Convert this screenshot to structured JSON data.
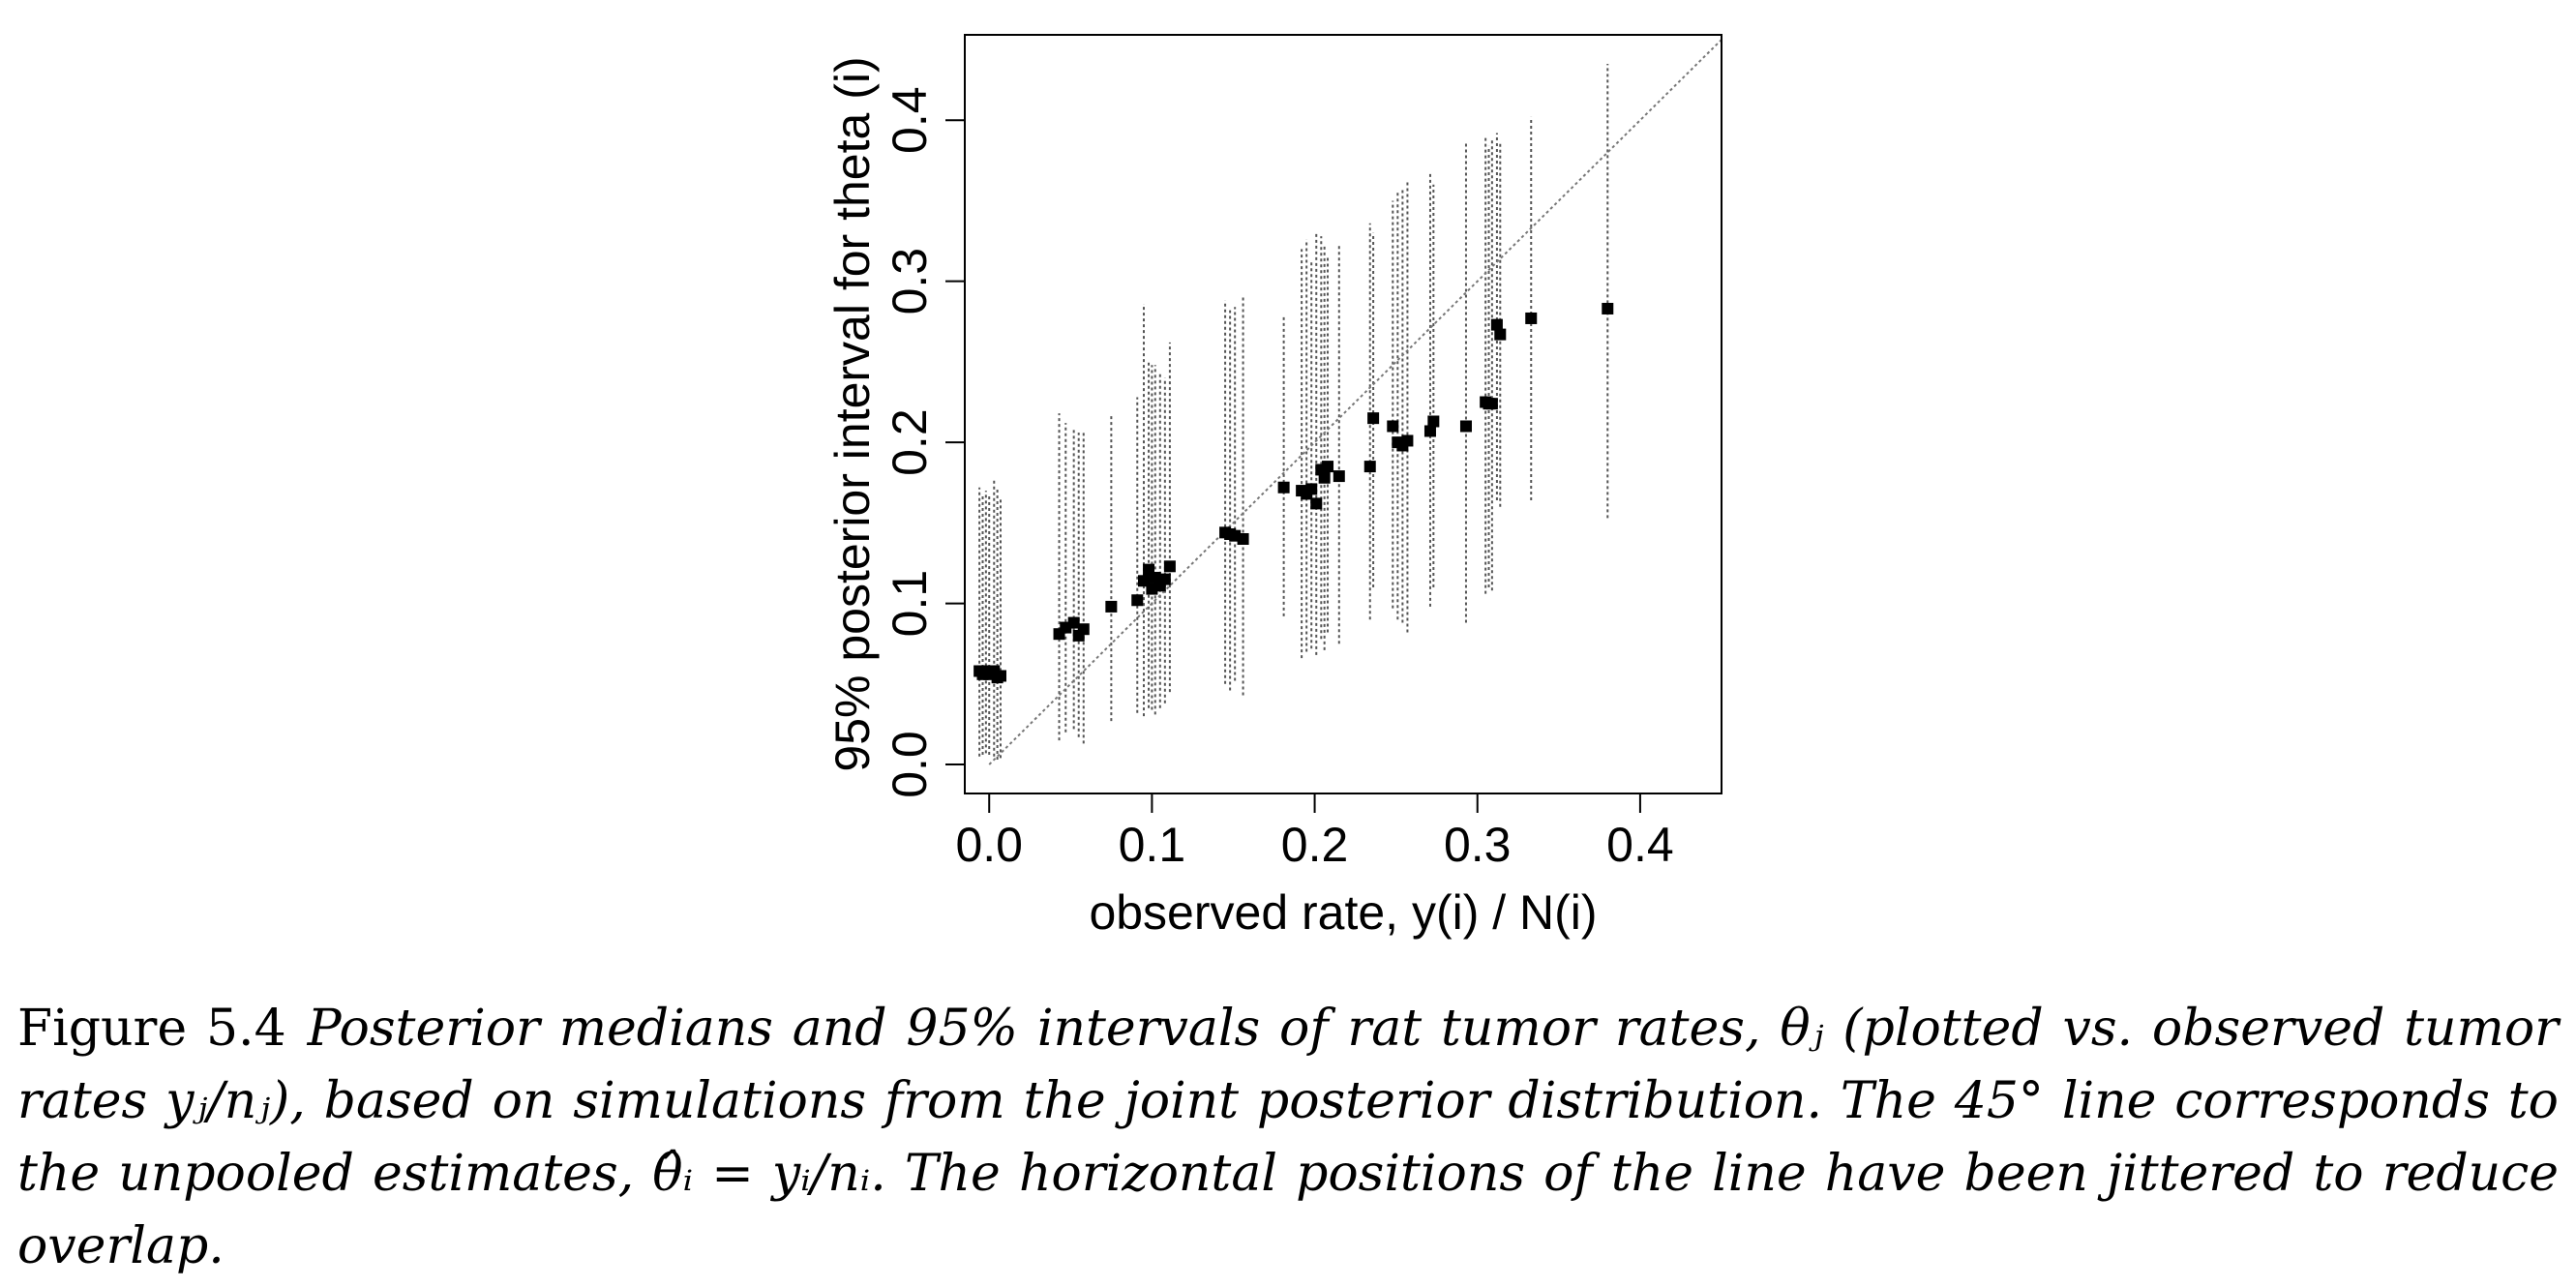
{
  "chart_data": {
    "type": "scatter",
    "xlabel": "observed rate, y(i) / N(i)",
    "ylabel": "95% posterior interval for theta (i)",
    "xlim": [
      -0.015,
      0.45
    ],
    "ylim": [
      -0.018,
      0.453
    ],
    "x_ticks": [
      "0.0",
      "0.1",
      "0.2",
      "0.3",
      "0.4"
    ],
    "y_ticks": [
      "0.0",
      "0.1",
      "0.2",
      "0.3",
      "0.4"
    ],
    "reference_line": "y = x (45° line)",
    "grid": false,
    "legend": "none",
    "points": [
      {
        "x": -0.006,
        "y": 0.058,
        "lo": 0.005,
        "hi": 0.172
      },
      {
        "x": -0.004,
        "y": 0.056,
        "lo": 0.006,
        "hi": 0.168
      },
      {
        "x": -0.002,
        "y": 0.058,
        "lo": 0.007,
        "hi": 0.17
      },
      {
        "x": 0.0,
        "y": 0.056,
        "lo": 0.006,
        "hi": 0.168
      },
      {
        "x": 0.003,
        "y": 0.058,
        "lo": 0.005,
        "hi": 0.178
      },
      {
        "x": 0.005,
        "y": 0.054,
        "lo": 0.003,
        "hi": 0.172
      },
      {
        "x": 0.007,
        "y": 0.055,
        "lo": 0.004,
        "hi": 0.166
      },
      {
        "x": 0.043,
        "y": 0.081,
        "lo": 0.015,
        "hi": 0.218
      },
      {
        "x": 0.047,
        "y": 0.085,
        "lo": 0.02,
        "hi": 0.212
      },
      {
        "x": 0.052,
        "y": 0.088,
        "lo": 0.022,
        "hi": 0.208
      },
      {
        "x": 0.055,
        "y": 0.08,
        "lo": 0.017,
        "hi": 0.206
      },
      {
        "x": 0.058,
        "y": 0.084,
        "lo": 0.013,
        "hi": 0.206
      },
      {
        "x": 0.075,
        "y": 0.098,
        "lo": 0.027,
        "hi": 0.218
      },
      {
        "x": 0.091,
        "y": 0.102,
        "lo": 0.032,
        "hi": 0.228
      },
      {
        "x": 0.095,
        "y": 0.114,
        "lo": 0.03,
        "hi": 0.286
      },
      {
        "x": 0.098,
        "y": 0.121,
        "lo": 0.035,
        "hi": 0.25
      },
      {
        "x": 0.1,
        "y": 0.109,
        "lo": 0.034,
        "hi": 0.248
      },
      {
        "x": 0.102,
        "y": 0.116,
        "lo": 0.031,
        "hi": 0.248
      },
      {
        "x": 0.105,
        "y": 0.111,
        "lo": 0.035,
        "hi": 0.244
      },
      {
        "x": 0.108,
        "y": 0.115,
        "lo": 0.038,
        "hi": 0.24
      },
      {
        "x": 0.111,
        "y": 0.123,
        "lo": 0.045,
        "hi": 0.262
      },
      {
        "x": 0.145,
        "y": 0.144,
        "lo": 0.05,
        "hi": 0.288
      },
      {
        "x": 0.148,
        "y": 0.143,
        "lo": 0.046,
        "hi": 0.282
      },
      {
        "x": 0.151,
        "y": 0.142,
        "lo": 0.052,
        "hi": 0.284
      },
      {
        "x": 0.156,
        "y": 0.14,
        "lo": 0.043,
        "hi": 0.29
      },
      {
        "x": 0.181,
        "y": 0.172,
        "lo": 0.092,
        "hi": 0.278
      },
      {
        "x": 0.192,
        "y": 0.17,
        "lo": 0.066,
        "hi": 0.32
      },
      {
        "x": 0.195,
        "y": 0.168,
        "lo": 0.07,
        "hi": 0.326
      },
      {
        "x": 0.198,
        "y": 0.171,
        "lo": 0.072,
        "hi": 0.312
      },
      {
        "x": 0.201,
        "y": 0.162,
        "lo": 0.068,
        "hi": 0.33
      },
      {
        "x": 0.204,
        "y": 0.183,
        "lo": 0.078,
        "hi": 0.328
      },
      {
        "x": 0.206,
        "y": 0.178,
        "lo": 0.071,
        "hi": 0.322
      },
      {
        "x": 0.208,
        "y": 0.185,
        "lo": 0.082,
        "hi": 0.316
      },
      {
        "x": 0.215,
        "y": 0.179,
        "lo": 0.075,
        "hi": 0.322
      },
      {
        "x": 0.234,
        "y": 0.185,
        "lo": 0.09,
        "hi": 0.336
      },
      {
        "x": 0.236,
        "y": 0.215,
        "lo": 0.11,
        "hi": 0.33
      },
      {
        "x": 0.248,
        "y": 0.21,
        "lo": 0.097,
        "hi": 0.35
      },
      {
        "x": 0.251,
        "y": 0.2,
        "lo": 0.09,
        "hi": 0.356
      },
      {
        "x": 0.254,
        "y": 0.198,
        "lo": 0.088,
        "hi": 0.358
      },
      {
        "x": 0.257,
        "y": 0.201,
        "lo": 0.082,
        "hi": 0.362
      },
      {
        "x": 0.271,
        "y": 0.207,
        "lo": 0.098,
        "hi": 0.368
      },
      {
        "x": 0.273,
        "y": 0.213,
        "lo": 0.11,
        "hi": 0.36
      },
      {
        "x": 0.293,
        "y": 0.21,
        "lo": 0.088,
        "hi": 0.386
      },
      {
        "x": 0.305,
        "y": 0.225,
        "lo": 0.106,
        "hi": 0.39
      },
      {
        "x": 0.307,
        "y": 0.224,
        "lo": 0.11,
        "hi": 0.384
      },
      {
        "x": 0.309,
        "y": 0.224,
        "lo": 0.108,
        "hi": 0.388
      },
      {
        "x": 0.312,
        "y": 0.273,
        "lo": 0.164,
        "hi": 0.392
      },
      {
        "x": 0.314,
        "y": 0.267,
        "lo": 0.16,
        "hi": 0.386
      },
      {
        "x": 0.333,
        "y": 0.277,
        "lo": 0.164,
        "hi": 0.402
      },
      {
        "x": 0.38,
        "y": 0.283,
        "lo": 0.153,
        "hi": 0.435
      }
    ]
  },
  "caption": {
    "label": "Figure 5.4",
    "text": "Posterior medians and 95% intervals of rat tumor rates, θⱼ (plotted vs. observed tumor rates yⱼ/nⱼ), based on simulations from the joint posterior distribution. The 45° line corresponds to the unpooled estimates, θ̂ᵢ = yᵢ/nᵢ. The horizontal positions of the line have been jittered to reduce overlap."
  }
}
